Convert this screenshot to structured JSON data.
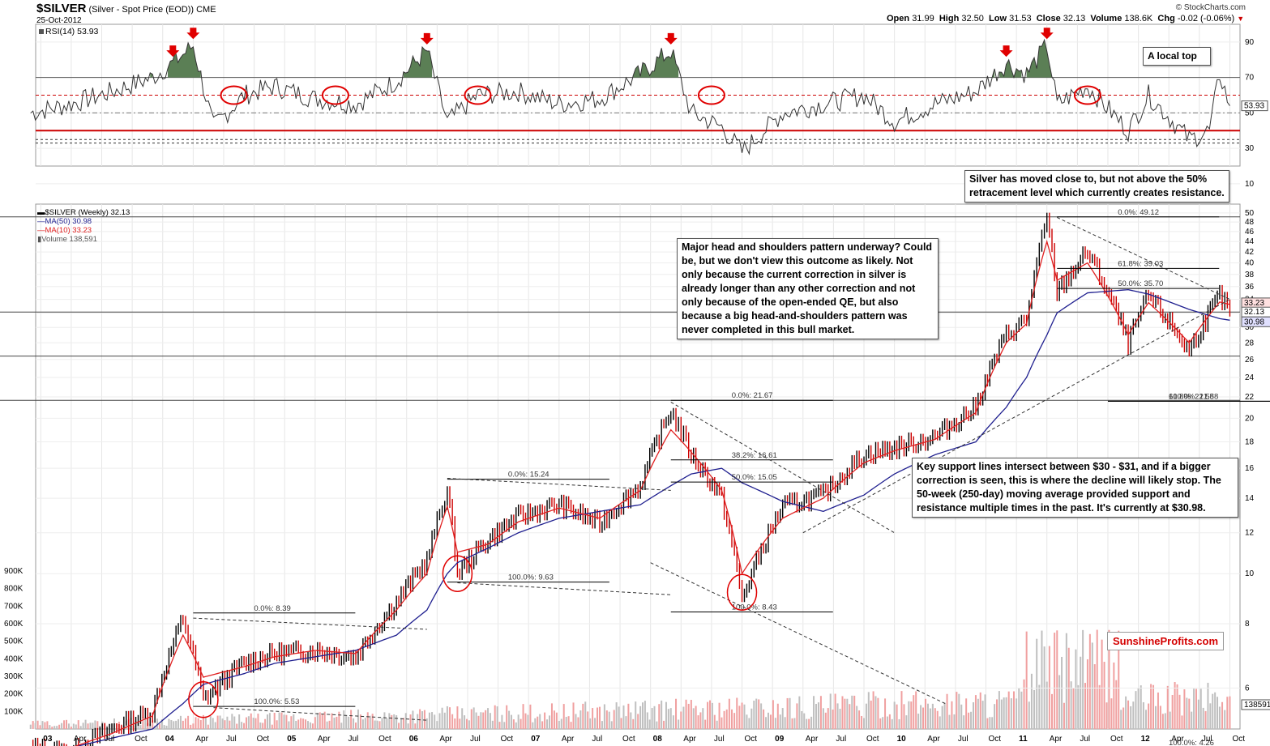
{
  "header": {
    "symbol": "$SILVER",
    "description": "(Silver - Spot Price (EOD))",
    "exchange": "CME",
    "date": "25-Oct-2012",
    "copyright": "© StockCharts.com",
    "open_label": "Open",
    "open": "31.99",
    "high_label": "High",
    "high": "32.50",
    "low_label": "Low",
    "low": "31.53",
    "close_label": "Close",
    "close": "32.13",
    "volume_label": "Volume",
    "volume": "138.6K",
    "chg_label": "Chg",
    "chg": "-0.02 (-0.06%)"
  },
  "rsi": {
    "label": "RSI(14)",
    "value": "53.93",
    "value_tag": "53.93"
  },
  "legend": {
    "price": "$SILVER (Weekly) 32.13",
    "ma50": "MA(50) 30.98",
    "ma10": "MA(10) 33.23",
    "volume": "Volume 138,591"
  },
  "annotations": {
    "local_top": "A local top",
    "retracement": "Silver has moved close to, but not above the 50% retracement level which currently creates resistance.",
    "head_shoulders": "Major head and shoulders pattern underway? Could be, but we don't view this outcome as likely. Not only because the current correction in silver is already longer than any other correction and not only because of the open-ended QE, but also because a big head-and-shoulders pattern was never completed in this bull market.",
    "support": "Key support lines intersect between $30 - $31, and if a bigger correction is seen, this is where the decline will likely stop. The 50-week (250-day) moving average provided support and resistance multiple times in the past. It's currently at $30.98."
  },
  "brand": "SunshineProfits.com",
  "price_tags": [
    "33.23",
    "32.13",
    "30.98"
  ],
  "volume_tag": "138591",
  "colors": {
    "price_up": "#000000",
    "price_down": "#cc0000",
    "ma50": "#1f1f8f",
    "ma10": "#e02020",
    "rsi_fill": "#5b7f55",
    "rsi_line": "#333333",
    "red_line": "#cc0000",
    "volume_up": "#bfbfbf",
    "volume_down": "#f0a0a0"
  },
  "chart_data": [
    {
      "type": "line",
      "name": "RSI(14)",
      "ylim": [
        20,
        100
      ],
      "yticks": [
        10,
        30,
        50,
        70,
        90
      ],
      "reference_lines": [
        70,
        60,
        50,
        40,
        35,
        33
      ],
      "x": [
        "2002-12",
        "2003-04",
        "2003-08",
        "2003-12",
        "2004-02",
        "2004-04",
        "2004-06",
        "2004-09",
        "2004-12",
        "2005-04",
        "2005-08",
        "2005-12",
        "2006-03",
        "2006-05",
        "2006-08",
        "2006-12",
        "2007-04",
        "2007-08",
        "2007-12",
        "2008-03",
        "2008-05",
        "2008-08",
        "2008-10",
        "2009-02",
        "2009-06",
        "2009-10",
        "2010-01",
        "2010-05",
        "2010-09",
        "2010-12",
        "2011-02",
        "2011-04",
        "2011-05",
        "2011-08",
        "2011-12",
        "2012-02",
        "2012-06",
        "2012-08",
        "2012-09",
        "2012-10"
      ],
      "y": [
        50,
        55,
        62,
        70,
        78,
        88,
        42,
        60,
        65,
        58,
        55,
        68,
        85,
        45,
        60,
        62,
        55,
        58,
        72,
        85,
        50,
        42,
        28,
        50,
        55,
        60,
        45,
        55,
        62,
        78,
        72,
        88,
        55,
        65,
        40,
        60,
        35,
        40,
        72,
        54
      ],
      "annotations": [
        "A local top"
      ]
    },
    {
      "type": "line",
      "name": "$SILVER (Weekly)",
      "ylim": [
        5,
        52
      ],
      "yticks": [
        6,
        8,
        10,
        12,
        14,
        16,
        18,
        20,
        22,
        24,
        26,
        28,
        30,
        32,
        34,
        36,
        38,
        40,
        42,
        44,
        46,
        48,
        50
      ],
      "x": [
        "2002-12",
        "2003-04",
        "2003-08",
        "2003-12",
        "2004-03",
        "2004-05",
        "2004-09",
        "2004-12",
        "2005-04",
        "2005-08",
        "2005-12",
        "2006-03",
        "2006-05",
        "2006-06",
        "2006-09",
        "2006-12",
        "2007-04",
        "2007-08",
        "2007-12",
        "2008-03",
        "2008-05",
        "2008-08",
        "2008-10",
        "2009-02",
        "2009-06",
        "2009-10",
        "2010-01",
        "2010-05",
        "2010-09",
        "2010-12",
        "2011-02",
        "2011-04",
        "2011-05",
        "2011-08",
        "2011-12",
        "2012-02",
        "2012-06",
        "2012-09",
        "2012-10"
      ],
      "y": [
        4.6,
        4.5,
        5.0,
        5.4,
        8.2,
        5.7,
        6.7,
        7.0,
        7.1,
        6.9,
        8.8,
        10.6,
        14.5,
        10.0,
        11.6,
        12.9,
        13.6,
        12.5,
        14.8,
        20.7,
        17.0,
        14.0,
        8.9,
        13.5,
        14.2,
        17.0,
        17.5,
        18.4,
        21.0,
        29.0,
        31.0,
        48.5,
        35.0,
        42.0,
        28.0,
        34.5,
        27.0,
        34.5,
        32.13
      ],
      "ma50_y": [
        4.5,
        4.6,
        4.8,
        5.0,
        5.6,
        6.1,
        6.4,
        6.7,
        6.9,
        7.1,
        7.6,
        8.5,
        10.0,
        10.5,
        11.2,
        12.0,
        12.8,
        13.2,
        13.6,
        14.8,
        15.6,
        16.0,
        15.0,
        13.8,
        13.2,
        14.2,
        15.6,
        17.0,
        18.0,
        21.0,
        24.0,
        29.0,
        32.0,
        35.0,
        35.5,
        34.8,
        32.5,
        31.2,
        30.98
      ],
      "ma10_y": [
        4.6,
        4.6,
        4.9,
        5.3,
        7.6,
        6.3,
        6.6,
        6.9,
        7.1,
        7.0,
        8.5,
        10.0,
        13.5,
        11.0,
        11.4,
        12.6,
        13.4,
        12.8,
        14.5,
        19.0,
        17.2,
        14.5,
        10.0,
        12.8,
        14.0,
        16.4,
        17.3,
        18.2,
        20.5,
        28.0,
        30.5,
        44.0,
        37.0,
        40.0,
        29.0,
        33.5,
        28.0,
        33.6,
        33.23
      ],
      "fibonacci": [
        {
          "label": "0.0%: 8.39"
        },
        {
          "label": "100.0%: 5.53"
        },
        {
          "label": "0.0%: 15.24"
        },
        {
          "label": "100.0%: 9.63"
        },
        {
          "label": "0.0%: 21.67"
        },
        {
          "label": "38.2%: 16.61"
        },
        {
          "label": "50.0%: 15.05"
        },
        {
          "label": "100.0%: 8.43"
        },
        {
          "label": "0.0%: 49.12"
        },
        {
          "label": "61.8%: 39.03"
        },
        {
          "label": "50.0%: 35.70"
        },
        {
          "label": "61.8%: 21.58"
        },
        {
          "label": "100.0%: 21.58"
        },
        {
          "label": "100.0%: 4.26"
        }
      ]
    },
    {
      "type": "bar",
      "name": "Volume",
      "ylim": [
        0,
        900000
      ],
      "yticks": [
        "100K",
        "200K",
        "300K",
        "400K",
        "500K",
        "600K",
        "700K",
        "800K",
        "900K"
      ]
    }
  ],
  "x_axis": {
    "labels": [
      "03",
      "Apr",
      "Jul",
      "Oct",
      "04",
      "Apr",
      "Jul",
      "Oct",
      "05",
      "Apr",
      "Jul",
      "Oct",
      "06",
      "Apr",
      "Jul",
      "Oct",
      "07",
      "Apr",
      "Jul",
      "Oct",
      "08",
      "Apr",
      "Jul",
      "Oct",
      "09",
      "Apr",
      "Jul",
      "Oct",
      "10",
      "Apr",
      "Jul",
      "Oct",
      "11",
      "Apr",
      "Jul",
      "Oct",
      "12",
      "Apr",
      "Jul",
      "Oct"
    ]
  }
}
